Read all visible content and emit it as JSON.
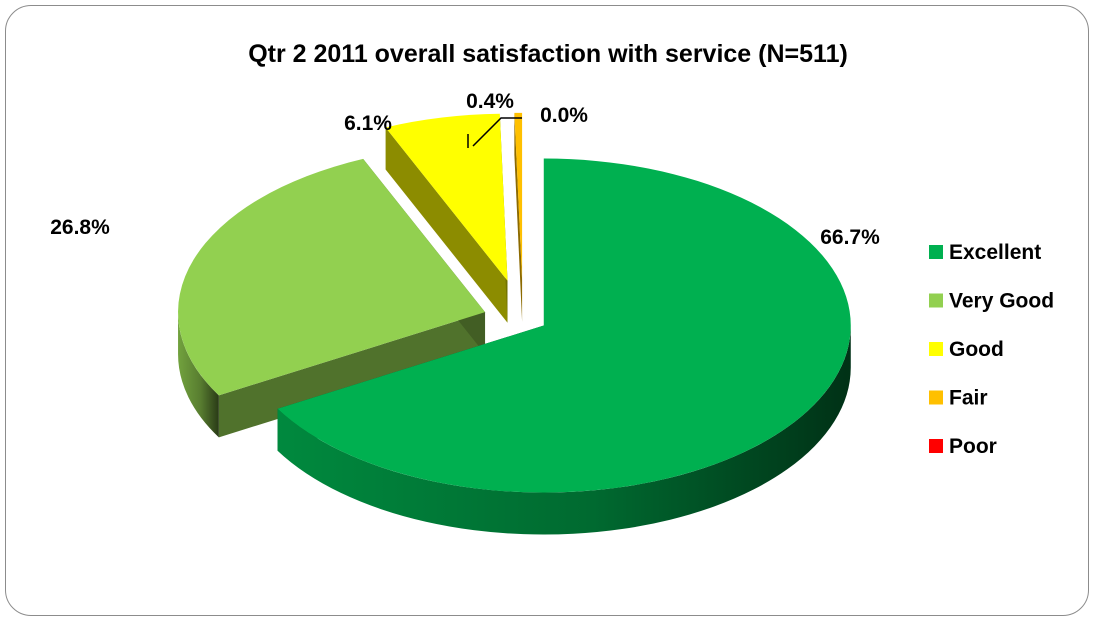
{
  "chart_data": {
    "type": "pie",
    "title": "Qtr 2 2011 overall satisfaction with service (N=511)",
    "categories": [
      "Excellent",
      "Very Good",
      "Good",
      "Fair",
      "Poor"
    ],
    "values": [
      66.7,
      26.8,
      6.1,
      0.4,
      0.0
    ],
    "value_labels": [
      "66.7%",
      "26.8%",
      "6.1%",
      "0.4%",
      "0.0%"
    ],
    "colors": [
      "#00b050",
      "#92d050",
      "#ffff00",
      "#ffc000",
      "#ff0000"
    ],
    "style": "3d-exploded",
    "legend_position": "right"
  }
}
